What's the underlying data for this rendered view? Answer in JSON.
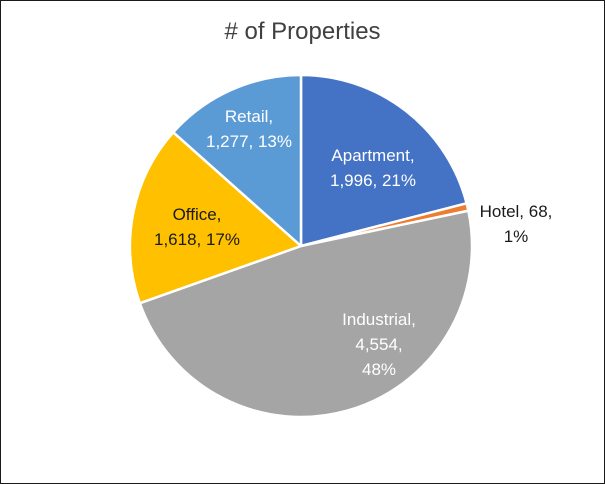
{
  "chart_data": {
    "type": "pie",
    "title": "# of Properties",
    "slices": [
      {
        "name": "Apartment",
        "value": 1996,
        "percent_label": "21%",
        "value_label": "1,996",
        "color": "#4472C4",
        "label_color": "#ffffff"
      },
      {
        "name": "Hotel",
        "value": 68,
        "percent_label": "1%",
        "value_label": "68",
        "color": "#ED7D31",
        "label_color": "#1a1a1a"
      },
      {
        "name": "Industrial",
        "value": 4554,
        "percent_label": "48%",
        "value_label": "4,554",
        "color": "#A5A5A5",
        "label_color": "#ffffff"
      },
      {
        "name": "Office",
        "value": 1618,
        "percent_label": "17%",
        "value_label": "1,618",
        "color": "#FFC000",
        "label_color": "#1a1a1a"
      },
      {
        "name": "Retail",
        "value": 1277,
        "percent_label": "13%",
        "value_label": "1,277",
        "color": "#5B9BD5",
        "label_color": "#ffffff"
      }
    ],
    "data_labels": [
      [
        "Apartment,",
        "1,996, 21%"
      ],
      [
        "Hotel, 68,",
        "1%"
      ],
      [
        "Industrial,",
        "4,554,",
        "48%"
      ],
      [
        "Office,",
        "1,618, 17%"
      ],
      [
        "Retail,",
        "1,277, 13%"
      ]
    ],
    "legend": "none"
  }
}
